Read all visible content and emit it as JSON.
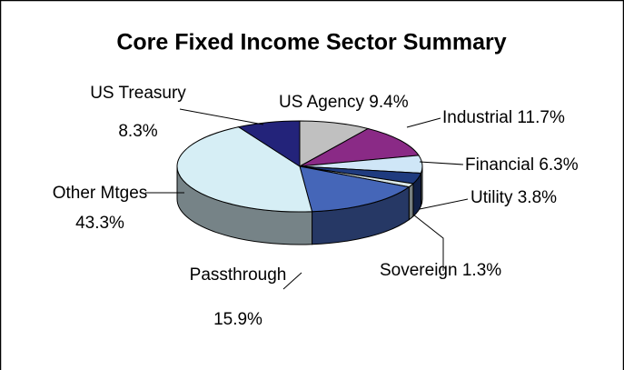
{
  "chart_data": {
    "type": "pie",
    "title": "Core Fixed Income Sector Summary",
    "categories": [
      "US Agency",
      "Industrial",
      "Financial",
      "Utility",
      "Sovereign",
      "Passthrough",
      "Other Mtges",
      "US Treasury"
    ],
    "values": [
      9.4,
      11.7,
      6.3,
      3.8,
      1.3,
      15.9,
      43.3,
      8.3
    ],
    "value_labels": [
      "9.4%",
      "11.7%",
      "6.3%",
      "3.8%",
      "1.3%",
      "15.9%",
      "43.3%",
      "8.3%"
    ],
    "colors": [
      "#c0c0c0",
      "#8a2a86",
      "#cfe6f7",
      "#1f3b7f",
      "#d9e6e6",
      "#4566b8",
      "#d6eef5",
      "#23237a"
    ]
  }
}
